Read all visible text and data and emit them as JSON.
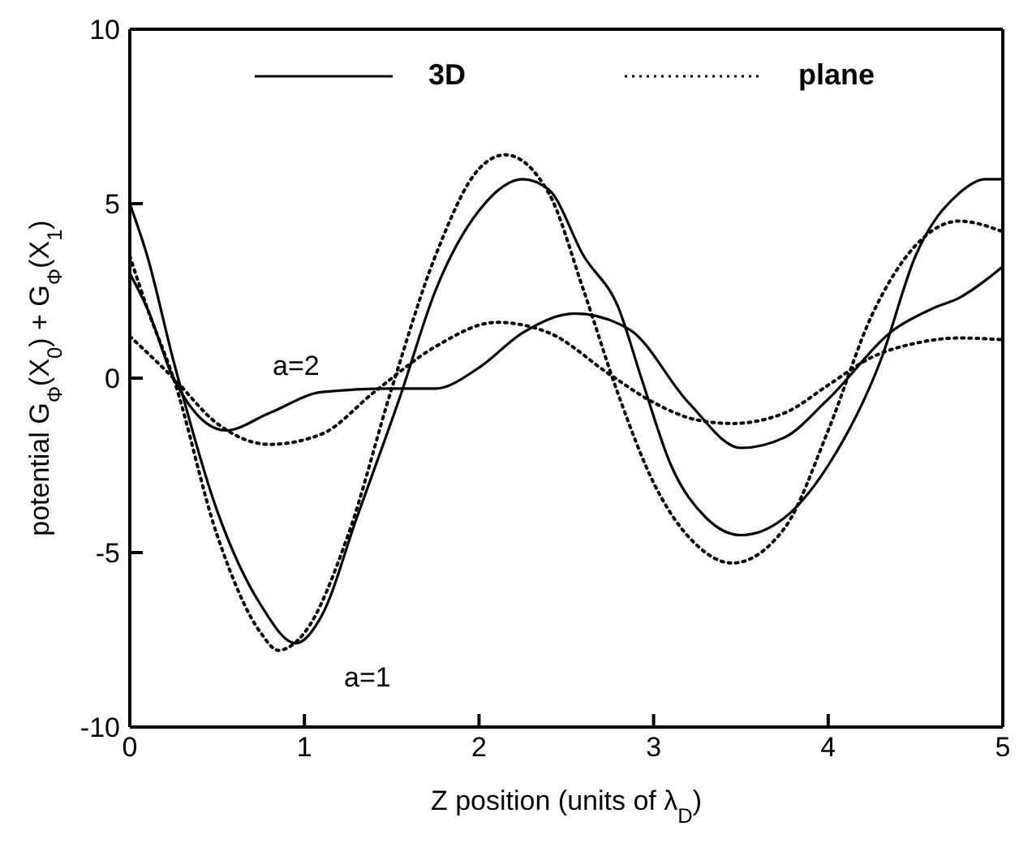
{
  "chart_data": {
    "type": "line",
    "xlabel": "Z position (units of λ$_{D}$)",
    "ylabel": "potential G$_{Φ}$(X$_{0}$) + G$_{Φ}$(X$_{1}$)",
    "xlim": [
      0,
      5
    ],
    "ylim": [
      -10,
      10
    ],
    "xticks": [
      0,
      1,
      2,
      3,
      4,
      5
    ],
    "yticks": [
      -10,
      -5,
      0,
      5,
      10
    ],
    "grid": false,
    "legend": "top",
    "marker": "none",
    "annotations": [
      "a=2",
      "a=1"
    ],
    "series": [
      {
        "name": "3D",
        "color": "#000000",
        "line_style": "solid",
        "x": [
          0,
          0.1,
          0.25,
          0.5,
          0.75,
          0.95,
          1.1,
          1.3,
          1.55,
          1.75,
          2,
          2.25,
          2.4,
          2.6,
          2.8,
          2.93,
          3.1,
          3.3,
          3.5,
          3.75,
          4,
          4.3,
          4.5,
          4.75,
          4.9,
          5
        ],
        "values": [
          5,
          3.5,
          0.5,
          -3.8,
          -6.5,
          -7.6,
          -6.8,
          -4,
          -0.5,
          2.5,
          4.8,
          5.7,
          5.4,
          3.5,
          2,
          0,
          -2.5,
          -4,
          -4.5,
          -4,
          -2.5,
          0.5,
          3.5,
          5.3,
          5.7,
          5.7
        ]
      },
      {
        "color": "#000000",
        "line_style": "solid",
        "x": [
          0,
          0.1,
          0.25,
          0.55,
          0.8,
          1.1,
          1.5,
          1.75,
          2,
          2.25,
          2.55,
          2.86,
          3.2,
          3.5,
          3.75,
          4,
          4.38,
          4.6,
          4.75,
          4.9,
          5
        ],
        "values": [
          3,
          2,
          0,
          -1.5,
          -1,
          -0.4,
          -0.3,
          -0.3,
          0.3,
          1.3,
          1.85,
          1.4,
          -0.7,
          -2,
          -1.7,
          -0.6,
          1.4,
          2,
          2.3,
          2.8,
          3.2
        ]
      },
      {
        "name": "plane",
        "color": "#000000",
        "line_style": "dotted",
        "x": [
          0,
          0.1,
          0.25,
          0.5,
          0.75,
          0.85,
          1,
          1.25,
          1.5,
          1.75,
          2,
          2.15,
          2.4,
          2.6,
          2.8,
          3,
          3.25,
          3.45,
          3.75,
          4,
          4.25,
          4.5,
          4.75,
          5
        ],
        "values": [
          3.5,
          2,
          0,
          -4.5,
          -7.3,
          -7.8,
          -7.3,
          -4.5,
          -0.3,
          3.5,
          6,
          6.4,
          5.3,
          2.5,
          -0.5,
          -3,
          -4.8,
          -5.3,
          -4.3,
          -1.5,
          1.8,
          3.8,
          4.5,
          4.2
        ]
      },
      {
        "color": "#000000",
        "line_style": "dotted",
        "x": [
          0,
          0.25,
          0.5,
          0.8,
          1.1,
          1.4,
          1.75,
          2.1,
          2.4,
          2.75,
          3,
          3.25,
          3.45,
          3.75,
          4,
          4.25,
          4.5,
          4.75,
          5
        ],
        "values": [
          1.2,
          0,
          -1.3,
          -1.9,
          -1.6,
          -0.4,
          0.9,
          1.6,
          1.3,
          0.1,
          -0.7,
          -1.2,
          -1.3,
          -1,
          -0.2,
          0.6,
          1,
          1.15,
          1.1
        ]
      }
    ]
  }
}
